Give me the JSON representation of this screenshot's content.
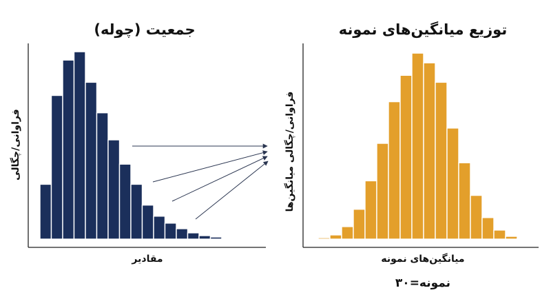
{
  "chart_data": [
    {
      "type": "bar",
      "title": "جمعیت (چوله)",
      "xlabel": "مقادیر",
      "ylabel": "فراوانی/چگالی",
      "values": [
        79,
        207,
        258,
        270,
        226,
        182,
        143,
        108,
        79,
        49,
        33,
        23,
        15,
        9,
        5,
        3,
        1,
        1
      ],
      "color": "#1b2f5b",
      "ylim": [
        0,
        280
      ]
    },
    {
      "type": "bar",
      "title": "توزیع میانگین‌های نمونه",
      "xlabel": "میانگین‌های نمونه",
      "ylabel": "فراوانی/چگالی میانگین‌ها",
      "values": [
        2,
        6,
        18,
        43,
        84,
        138,
        198,
        236,
        268,
        254,
        226,
        160,
        110,
        63,
        31,
        13,
        4,
        1
      ],
      "color": "#e39f2b",
      "ylim": [
        0,
        280
      ]
    }
  ],
  "note": "نمونه=۳۰",
  "arrow_color": "#2a3550"
}
